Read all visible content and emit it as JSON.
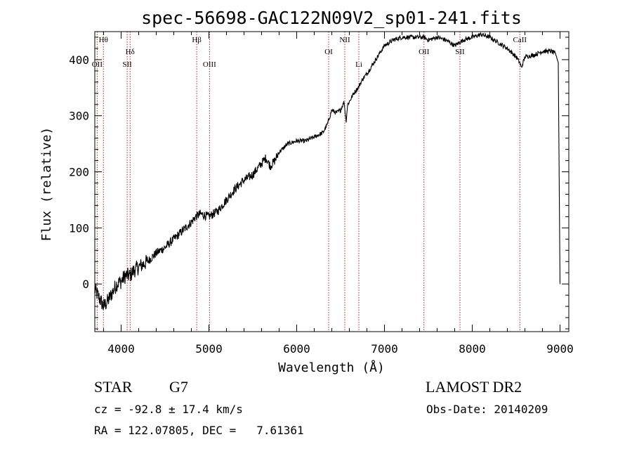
{
  "chart_data": {
    "type": "line",
    "title": "spec-56698-GAC122N09V2_sp01-241.fits",
    "xlabel": "Wavelength (Å)",
    "ylabel": "Flux (relative)",
    "xlim": [
      3700,
      9100
    ],
    "ylim": [
      -85,
      450
    ],
    "xticks": [
      4000,
      5000,
      6000,
      7000,
      8000,
      9000
    ],
    "yticks": [
      0,
      100,
      200,
      300,
      400
    ],
    "grid": false,
    "series": [
      {
        "x": [
          3700,
          3750,
          3800,
          3850,
          3900,
          3950,
          4000,
          4050,
          4100,
          4150,
          4200,
          4300,
          4400,
          4500,
          4600,
          4700,
          4800,
          4850,
          4900,
          5000,
          5100,
          5200,
          5300,
          5400,
          5500,
          5600,
          5650,
          5700,
          5750,
          5800,
          5900,
          6000,
          6100,
          6200,
          6300,
          6350,
          6400,
          6450,
          6500,
          6540,
          6563,
          6580,
          6600,
          6650,
          6700,
          6750,
          6800,
          6900,
          7000,
          7100,
          7200,
          7300,
          7400,
          7450,
          7500,
          7600,
          7700,
          7800,
          7900,
          8000,
          8100,
          8200,
          8300,
          8400,
          8500,
          8540,
          8560,
          8600,
          8700,
          8800,
          8900,
          8950,
          8980,
          9000
        ],
        "y": [
          -10,
          -25,
          -40,
          -30,
          -15,
          0,
          5,
          15,
          15,
          25,
          30,
          40,
          55,
          65,
          80,
          95,
          110,
          120,
          125,
          120,
          130,
          150,
          170,
          185,
          195,
          215,
          225,
          210,
          220,
          235,
          250,
          255,
          255,
          262,
          270,
          285,
          310,
          305,
          310,
          325,
          290,
          320,
          325,
          340,
          350,
          365,
          375,
          400,
          425,
          435,
          440,
          440,
          440,
          440,
          435,
          440,
          435,
          425,
          435,
          440,
          445,
          440,
          430,
          420,
          405,
          395,
          385,
          405,
          408,
          415,
          415,
          410,
          395,
          0
        ]
      }
    ],
    "lines": [
      {
        "name": "Hθ",
        "x": 3798,
        "row": "top"
      },
      {
        "name": "OII",
        "x": 3727,
        "row": "mid"
      },
      {
        "name": "Hδ",
        "x": 4102,
        "row": "upper"
      },
      {
        "name": "SII",
        "x": 4069,
        "row": "mid"
      },
      {
        "name": "Hβ",
        "x": 4861,
        "row": "top"
      },
      {
        "name": "OIII",
        "x": 5007,
        "row": "mid"
      },
      {
        "name": "OI",
        "x": 6364,
        "row": "upper"
      },
      {
        "name": "NII",
        "x": 6548,
        "row": "top"
      },
      {
        "name": "Li",
        "x": 6708,
        "row": "mid"
      },
      {
        "name": "OII",
        "x": 7450,
        "row": "upper"
      },
      {
        "name": "SII",
        "x": 7860,
        "row": "upper"
      },
      {
        "name": "CaII",
        "x": 8542,
        "row": "top"
      }
    ]
  },
  "info": {
    "class": "STAR",
    "subclass": "G7",
    "survey": "LAMOST DR2",
    "cz": "cz = -92.8 ± 17.4 km/s",
    "obs_date": "Obs-Date: 20140209",
    "coords": "RA = 122.07805, DEC =   7.61361"
  },
  "colors": {
    "spectrum": "#000000",
    "line_markers": "#b22222",
    "axes": "#000000"
  }
}
